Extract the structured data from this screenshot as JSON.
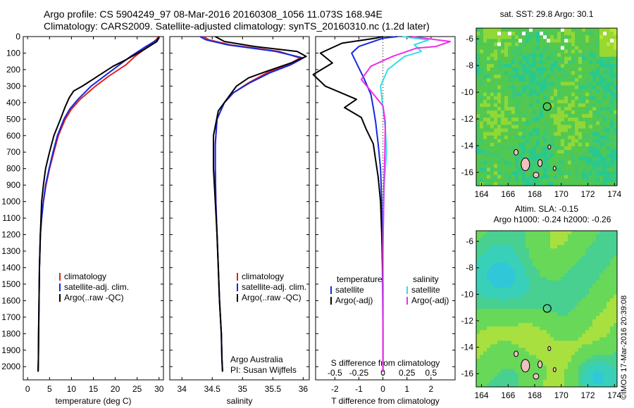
{
  "header": {
    "line1": "Argo profile: CS 5904249_97 08-Mar-2016 20160308_1056 11.073S 168.94E",
    "line2": "Climatology: CARS2009. Satellite-adjusted climatology: synTS_20160310.nc (1.2d later)"
  },
  "stamp": "©IMOS 17-Mar-2016 20:39:08",
  "colors": {
    "climatology": "#e0201e",
    "satellite": "#1428e0",
    "argo": "#000000",
    "sat_sal": "#30e0e8",
    "argo_sal": "#f02ce8"
  },
  "chart_data": [
    {
      "type": "line",
      "xlabel": "temperature (deg C)",
      "ylabel": "",
      "xlim": [
        -1,
        31
      ],
      "ylim": [
        2080,
        0
      ],
      "xticks": [
        0,
        5,
        10,
        15,
        20,
        25,
        30
      ],
      "yticks": [
        0,
        100,
        200,
        300,
        400,
        500,
        600,
        700,
        800,
        900,
        1000,
        1100,
        1200,
        1300,
        1400,
        1500,
        1600,
        1700,
        1800,
        1900,
        2000
      ],
      "legend": [
        "climatology",
        "satellite-adj. clim.",
        "Argo(..raw -QC)"
      ],
      "series": [
        {
          "name": "climatology",
          "color": "#e0201e",
          "x": [
            29.9,
            29.3,
            27.5,
            24.5,
            22.5,
            18.5,
            15.5,
            12,
            10,
            8.6,
            7,
            6,
            5,
            4.2,
            3.6,
            3.2,
            2.9,
            2.7,
            2.6,
            2.5,
            2.45,
            2.4
          ],
          "y": [
            0,
            20,
            60,
            120,
            170,
            240,
            300,
            380,
            440,
            500,
            600,
            700,
            800,
            900,
            1000,
            1100,
            1200,
            1400,
            1600,
            1800,
            1950,
            2030
          ]
        },
        {
          "name": "satellite-adj. clim.",
          "color": "#1428e0",
          "x": [
            30.1,
            29.5,
            27,
            23.5,
            21,
            17.5,
            14.5,
            11.5,
            9.6,
            8.3,
            6.8,
            5.8,
            4.9,
            4.1,
            3.6,
            3.2,
            2.9,
            2.7,
            2.6,
            2.5,
            2.45,
            2.4
          ],
          "y": [
            0,
            20,
            60,
            120,
            170,
            240,
            300,
            380,
            440,
            500,
            600,
            700,
            800,
            900,
            1000,
            1100,
            1200,
            1400,
            1600,
            1800,
            1950,
            2030
          ]
        },
        {
          "name": "Argo(..raw -QC)",
          "color": "#000000",
          "x": [
            30.0,
            29.8,
            29.5,
            26.5,
            22.5,
            19.5,
            16,
            12.5,
            10.5,
            9.5,
            8.5,
            7.5,
            6,
            5,
            4.1,
            3.6,
            3.2,
            2.9,
            2.7,
            2.6,
            2.5,
            2.45,
            2.4
          ],
          "y": [
            0,
            15,
            30,
            80,
            140,
            180,
            240,
            300,
            330,
            370,
            430,
            500,
            600,
            700,
            800,
            900,
            1000,
            1200,
            1400,
            1600,
            1800,
            1950,
            2030
          ]
        }
      ]
    },
    {
      "type": "line",
      "xlabel": "salinity",
      "xlim": [
        33.8,
        36.1
      ],
      "ylim": [
        2080,
        0
      ],
      "xticks": [
        34,
        34.5,
        35,
        35.5,
        36
      ],
      "ticklabels": [
        "34",
        "34.5",
        "35",
        "35.5",
        "36"
      ],
      "legend": [
        "climatology",
        "satellite-adj. clim.",
        "Argo(..raw -QC)"
      ],
      "annotation": [
        "Argo Australia",
        "PI: Susan Wijffels"
      ],
      "series": [
        {
          "name": "climatology",
          "color": "#e0201e",
          "x": [
            34.35,
            34.45,
            34.8,
            35.6,
            35.95,
            35.75,
            35.4,
            35.1,
            34.85,
            34.7,
            34.58,
            34.55,
            34.55,
            34.56,
            34.58,
            34.6,
            34.62,
            34.65,
            34.66,
            34.67
          ],
          "y": [
            0,
            20,
            50,
            90,
            130,
            170,
            220,
            280,
            340,
            400,
            500,
            650,
            800,
            1000,
            1200,
            1400,
            1600,
            1800,
            1950,
            2030
          ]
        },
        {
          "name": "satellite-adj. clim.",
          "color": "#1428e0",
          "x": [
            34.3,
            34.4,
            34.75,
            35.55,
            36.0,
            35.8,
            35.45,
            35.12,
            34.85,
            34.7,
            34.58,
            34.55,
            34.55,
            34.56,
            34.58,
            34.6,
            34.62,
            34.65,
            34.66,
            34.67
          ],
          "y": [
            0,
            20,
            50,
            90,
            130,
            170,
            220,
            280,
            340,
            400,
            500,
            650,
            800,
            1000,
            1200,
            1400,
            1600,
            1800,
            1950,
            2030
          ]
        },
        {
          "name": "Argo(..raw -QC)",
          "color": "#000000",
          "x": [
            34.55,
            34.7,
            35.2,
            35.9,
            36.05,
            35.8,
            35.4,
            35.1,
            34.9,
            34.8,
            34.6,
            34.52,
            34.52,
            34.55,
            34.58,
            34.6,
            34.62,
            34.65,
            34.66,
            34.67
          ],
          "y": [
            0,
            30,
            60,
            90,
            120,
            160,
            210,
            250,
            300,
            350,
            450,
            600,
            800,
            1000,
            1200,
            1400,
            1600,
            1800,
            1950,
            2030
          ]
        }
      ]
    },
    {
      "type": "line",
      "xlabel": "T difference from climatology",
      "xlabel2": "S difference from climatology",
      "xlim": [
        -2.8,
        3.0
      ],
      "ylim": [
        2080,
        0
      ],
      "xticks": [
        -2,
        -1,
        0,
        1,
        2
      ],
      "xticks2": [
        -2,
        -1,
        0,
        1,
        2
      ],
      "xticklabels2": [
        "-0.5",
        "-0.25",
        "0",
        "0.25",
        "0.5"
      ],
      "legend": [
        "temperature",
        "satellite",
        "Argo(-adj)",
        "salinity",
        "satellite",
        "Argo(-adj)"
      ],
      "series": [
        {
          "name": "satellite",
          "color": "#1428e0",
          "x": [
            0.6,
            0,
            -1,
            -1.3,
            -1.1,
            -0.8,
            -0.5,
            -0.4,
            -0.3,
            -0.2,
            -0.1,
            -0.05,
            -0.02,
            0,
            0
          ],
          "y": [
            0,
            10,
            60,
            100,
            160,
            250,
            350,
            430,
            520,
            650,
            800,
            1000,
            1400,
            1800,
            2030
          ]
        },
        {
          "name": "Argo(-adj)",
          "color": "#000000",
          "x": [
            0,
            -0.3,
            -1.7,
            -2.6,
            -2.1,
            -2.9,
            -2.4,
            -1.1,
            -1.6,
            -0.9,
            -0.7,
            -0.4,
            -0.3,
            -0.2,
            -0.1,
            -0.05,
            0,
            0
          ],
          "y": [
            0,
            10,
            40,
            100,
            160,
            230,
            300,
            380,
            430,
            490,
            560,
            650,
            750,
            850,
            1000,
            1200,
            1500,
            2030
          ]
        },
        {
          "name": "satellite",
          "color": "#30e0e8",
          "x": [
            0.8,
            1.9,
            1.3,
            1.6,
            0.9,
            0.2,
            -0.1,
            0,
            0.1,
            0.15,
            0.05,
            0,
            0,
            0
          ],
          "y": [
            0,
            20,
            50,
            90,
            120,
            200,
            300,
            430,
            560,
            700,
            900,
            1200,
            1600,
            2030
          ]
        },
        {
          "name": "Argo(-adj)",
          "color": "#f02ce8",
          "x": [
            1.2,
            2.8,
            2.2,
            1.4,
            0.4,
            -0.5,
            -0.9,
            -0.5,
            0,
            0.1,
            0.08,
            0.04,
            0,
            0
          ],
          "y": [
            0,
            30,
            60,
            70,
            120,
            180,
            260,
            330,
            420,
            520,
            700,
            900,
            1300,
            2030
          ]
        }
      ]
    }
  ],
  "maps": [
    {
      "title": "sat. SST: 29.8  Argo: 30.1",
      "xticks": [
        164,
        166,
        168,
        170,
        172,
        174
      ],
      "yticks": [
        -6,
        -8,
        -10,
        -12,
        -14,
        -16
      ],
      "argo_position": [
        168.94,
        -11.07
      ]
    },
    {
      "title1": "Altim. SLA: -0.15",
      "title2": "Argo h1000: -0.24  h2000: -0.26",
      "xticks": [
        164,
        166,
        168,
        170,
        172,
        174
      ],
      "yticks": [
        -6,
        -8,
        -10,
        -12,
        -14,
        -16
      ],
      "argo_position": [
        168.94,
        -11.07
      ]
    }
  ]
}
